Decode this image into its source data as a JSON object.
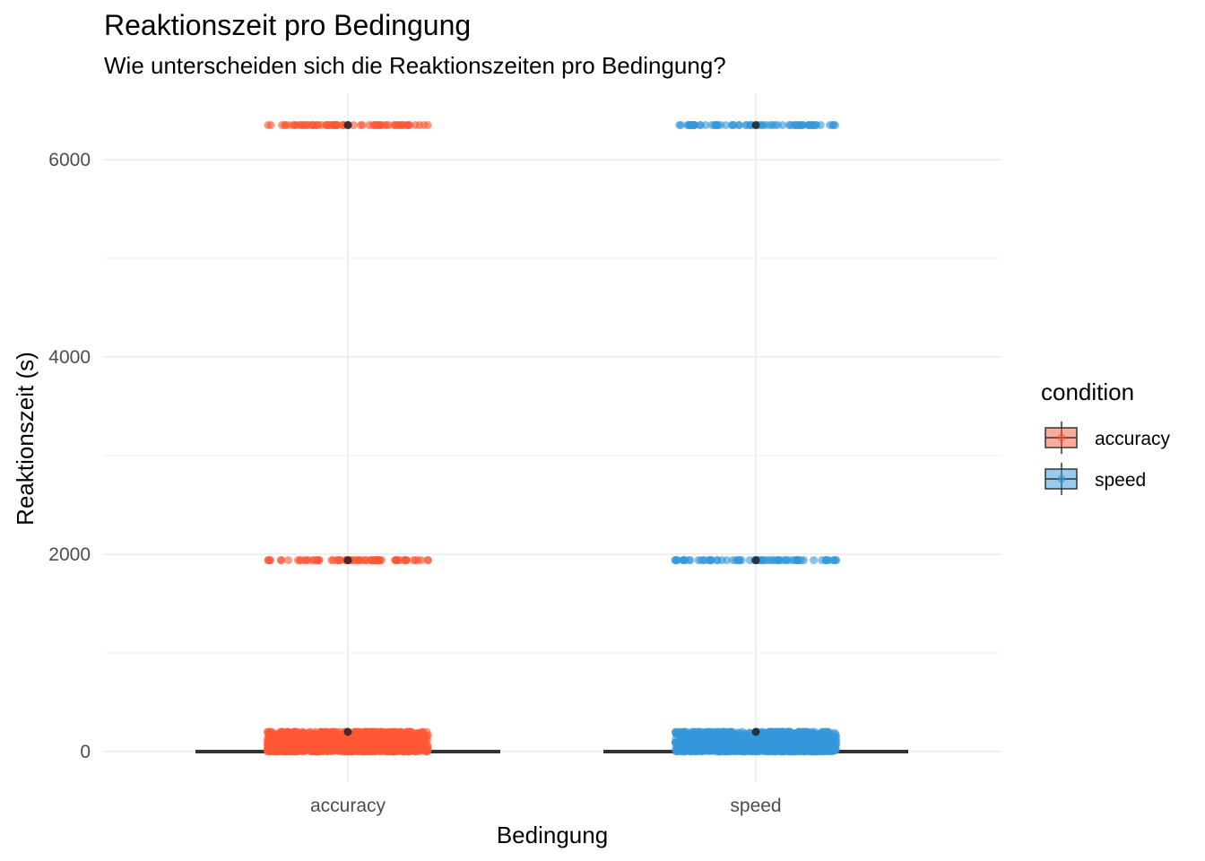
{
  "chart_data": {
    "type": "scatter",
    "title": "Reaktionszeit pro Bedingung",
    "subtitle": "Wie unterscheiden sich die Reaktionszeiten pro Bedingung?",
    "xlabel": "Bedingung",
    "ylabel": "Reaktionszeit (s)",
    "categories": [
      "accuracy",
      "speed"
    ],
    "ylim": [
      -250,
      6650
    ],
    "yticks": [
      0,
      2000,
      4000,
      6000
    ],
    "grid": true,
    "legend": {
      "title": "condition",
      "placement": "right",
      "entries": [
        "accuracy",
        "speed"
      ]
    },
    "colors": {
      "accuracy": "#FF5733",
      "speed": "#3498DB"
    },
    "series": [
      {
        "name": "accuracy",
        "outlier_levels": [
          6350,
          1940
        ],
        "bulk_range": [
          0,
          200
        ],
        "median": 0,
        "mean_points": [
          6350,
          1940,
          200
        ]
      },
      {
        "name": "speed",
        "outlier_levels": [
          6350,
          1940
        ],
        "bulk_range": [
          0,
          200
        ],
        "median": 0,
        "mean_points": [
          6350,
          1940,
          200
        ]
      }
    ]
  }
}
